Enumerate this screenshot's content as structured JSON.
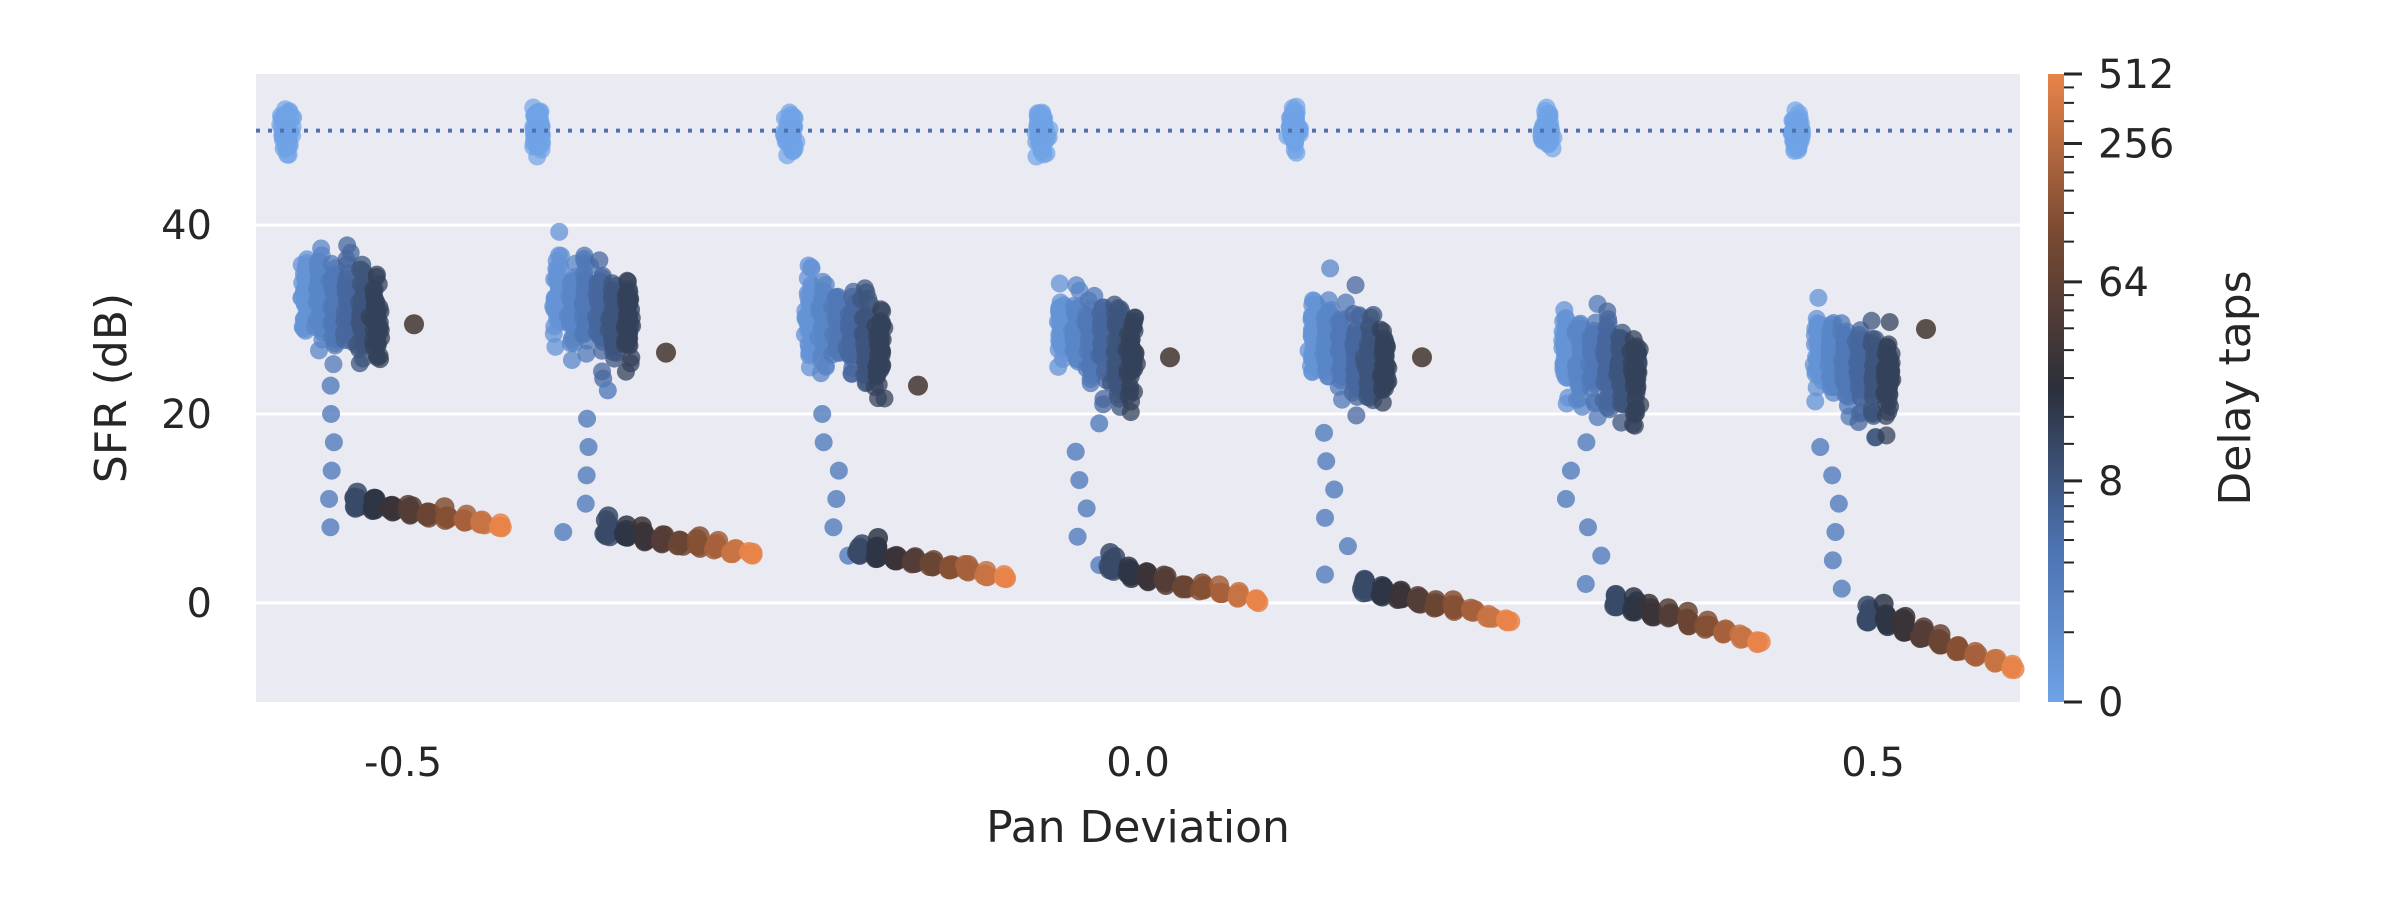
{
  "chart_data": {
    "type": "scatter",
    "subtype": "strip",
    "title": "",
    "xlabel": "Pan Deviation",
    "ylabel": "SFR (dB)",
    "x_ticks": [
      {
        "value": -0.5,
        "label": "-0.5"
      },
      {
        "value": 0.0,
        "label": "0.0"
      },
      {
        "value": 0.5,
        "label": "0.5"
      }
    ],
    "y_ticks": [
      {
        "value": 0,
        "label": "0"
      },
      {
        "value": 20,
        "label": "20"
      },
      {
        "value": 40,
        "label": "40"
      }
    ],
    "ylim": [
      -10.5,
      56
    ],
    "xlim": [
      -0.6,
      0.6
    ],
    "groups_x": [
      -0.5,
      -0.333,
      -0.167,
      0.0,
      0.167,
      0.333,
      0.5
    ],
    "reference_line": {
      "y": 50,
      "color": "#4c72b0",
      "style": "dotted"
    },
    "reference_cluster": {
      "center": 50,
      "spread": 2.5,
      "color": "#6fa2e6"
    },
    "spread_cluster": {
      "centers": [
        33,
        32.5,
        30,
        29,
        28,
        27,
        26.5
      ],
      "std": 4.5,
      "outliers": [
        29.5,
        26.5,
        23,
        26,
        26,
        0,
        29
      ]
    },
    "tail_cluster": {
      "start": [
        10,
        7,
        5,
        3,
        1,
        -0.5,
        -2
      ],
      "end": [
        8,
        5,
        2.5,
        0,
        -2,
        -4.3,
        -7
      ]
    },
    "colorbar": {
      "label": "Delay taps",
      "scale": "log2",
      "ticks": [
        {
          "value": 0,
          "label": "0"
        },
        {
          "value": 8,
          "label": "8"
        },
        {
          "value": 64,
          "label": "64"
        },
        {
          "value": 256,
          "label": "256"
        },
        {
          "value": 512,
          "label": "512"
        }
      ],
      "colors": [
        "#6fa2e6",
        "#4c72b0",
        "#2b2f3a",
        "#7a4a32",
        "#e8844a"
      ]
    },
    "colors": {
      "background": "#eaeaf2",
      "grid": "#ffffff"
    }
  }
}
